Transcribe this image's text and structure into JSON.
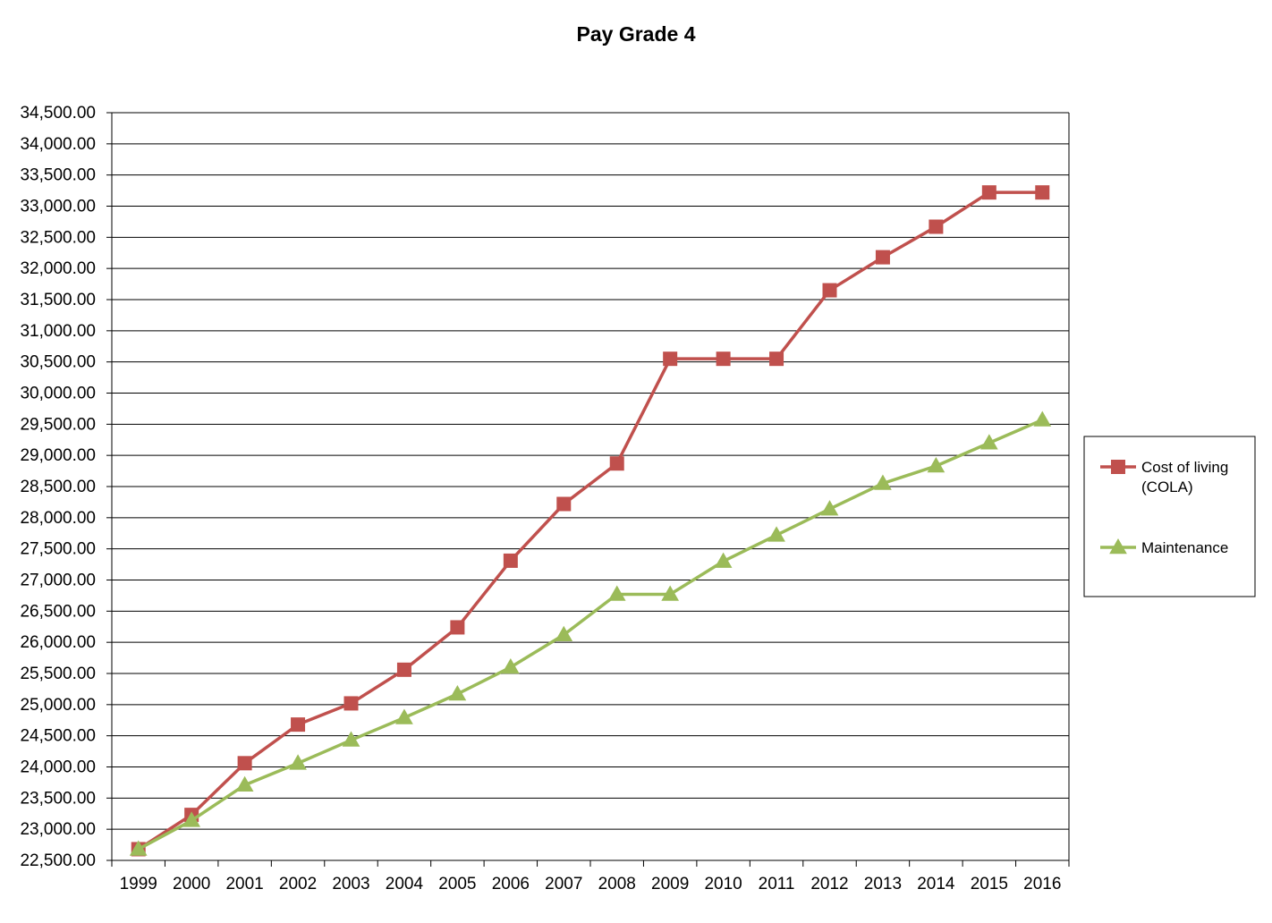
{
  "chart_data": {
    "type": "line",
    "title": "Pay Grade 4",
    "xlabel": "",
    "ylabel": "",
    "categories": [
      "1999",
      "2000",
      "2001",
      "2002",
      "2003",
      "2004",
      "2005",
      "2006",
      "2007",
      "2008",
      "2009",
      "2010",
      "2011",
      "2012",
      "2013",
      "2014",
      "2015",
      "2016"
    ],
    "y_ticks": [
      "22,500.00",
      "23,000.00",
      "23,500.00",
      "24,000.00",
      "24,500.00",
      "25,000.00",
      "25,500.00",
      "26,000.00",
      "26,500.00",
      "27,000.00",
      "27,500.00",
      "28,000.00",
      "28,500.00",
      "29,000.00",
      "29,500.00",
      "30,000.00",
      "30,500.00",
      "31,000.00",
      "31,500.00",
      "32,000.00",
      "32,500.00",
      "33,000.00",
      "33,500.00",
      "34,000.00",
      "34,500.00"
    ],
    "ylim": [
      22500,
      34500
    ],
    "grid": true,
    "legend_position": "right",
    "series": [
      {
        "name": "Cost of living (COLA)",
        "legend_lines": [
          "Cost of living",
          "(COLA)"
        ],
        "color": "#C0504D",
        "marker": "square",
        "values": [
          22680,
          23230,
          24060,
          24680,
          25020,
          25560,
          26240,
          27310,
          28220,
          28870,
          30550,
          30550,
          30550,
          31650,
          32180,
          32670,
          33220,
          33220
        ]
      },
      {
        "name": "Maintenance",
        "legend_lines": [
          "Maintenance"
        ],
        "color": "#9BBB59",
        "marker": "triangle",
        "values": [
          22680,
          23140,
          23710,
          24060,
          24430,
          24790,
          25170,
          25600,
          26120,
          26770,
          26770,
          27300,
          27720,
          28140,
          28550,
          28830,
          29200,
          29570
        ]
      }
    ]
  }
}
